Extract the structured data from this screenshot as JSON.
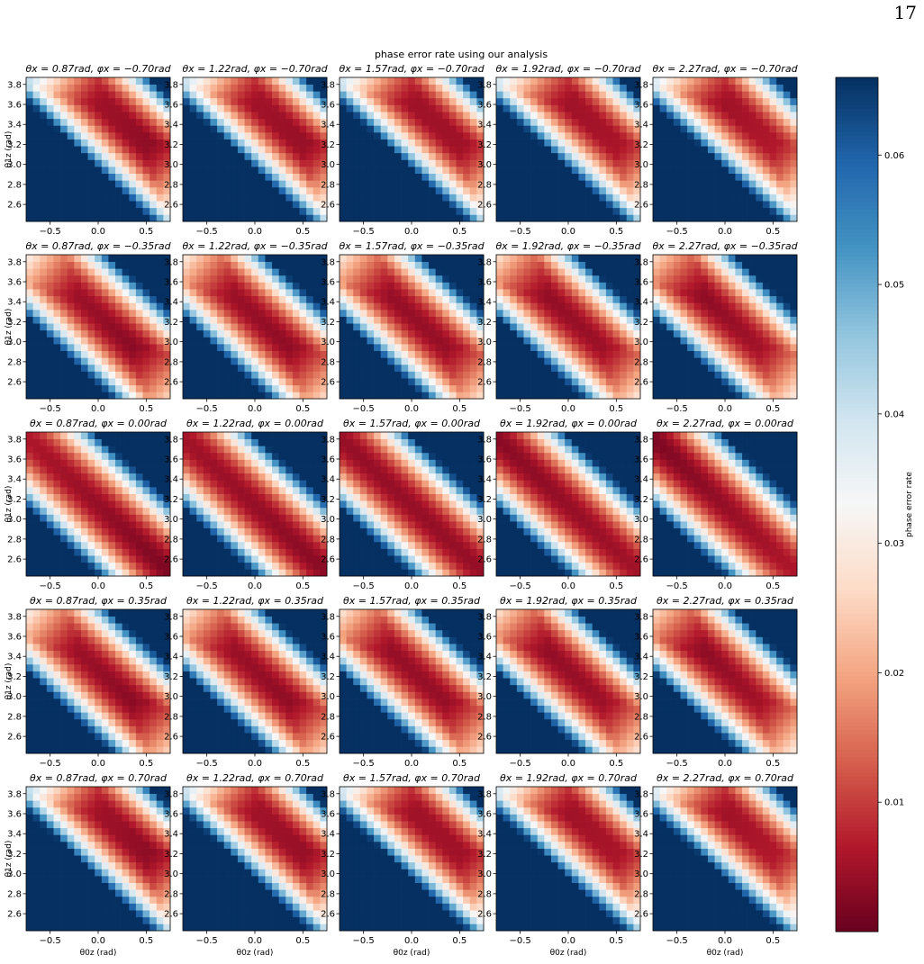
{
  "page": {
    "number": "17"
  },
  "chart_data": {
    "type": "heatmap",
    "title": "phase error rate using our analysis",
    "xlabel": "θ0z (rad)",
    "ylabel": "θ1z (rad)",
    "colorbar_label": "phase error rate",
    "colormap": "RdBu",
    "colormap_stops": [
      "#67001f",
      "#b2182b",
      "#d6604d",
      "#f4a582",
      "#fddbc7",
      "#f7f7f7",
      "#d1e5f0",
      "#92c5de",
      "#4393c3",
      "#2166ac",
      "#053061"
    ],
    "value_range": [
      0.0,
      0.066
    ],
    "colorbar_ticks": [
      "0.01",
      "0.02",
      "0.03",
      "0.04",
      "0.05",
      "0.06"
    ],
    "colorbar_tick_values": [
      0.01,
      0.02,
      0.03,
      0.04,
      0.05,
      0.06
    ],
    "x_range": [
      -0.75,
      0.75
    ],
    "y_range": [
      2.43,
      3.87
    ],
    "x_tick_values": [
      -0.5,
      0.0,
      0.5
    ],
    "x_ticks": [
      "−0.5",
      "0.0",
      "0.5"
    ],
    "y_tick_values": [
      2.6,
      2.8,
      3.0,
      3.2,
      3.4,
      3.6,
      3.8
    ],
    "y_ticks": [
      "2.6",
      "2.8",
      "3.0",
      "3.2",
      "3.4",
      "3.6",
      "3.8"
    ],
    "theta_x_values": [
      0.87,
      1.22,
      1.57,
      1.92,
      2.27
    ],
    "phi_x_values": [
      -0.7,
      -0.35,
      0.0,
      0.35,
      0.7
    ],
    "panels": [
      [
        {
          "theta_x": 0.87,
          "phi_x": -0.7,
          "title": "θx = 0.87rad, φx = −0.70rad"
        },
        {
          "theta_x": 1.22,
          "phi_x": -0.7,
          "title": "θx = 1.22rad, φx = −0.70rad"
        },
        {
          "theta_x": 1.57,
          "phi_x": -0.7,
          "title": "θx = 1.57rad, φx = −0.70rad"
        },
        {
          "theta_x": 1.92,
          "phi_x": -0.7,
          "title": "θx = 1.92rad, φx = −0.70rad"
        },
        {
          "theta_x": 2.27,
          "phi_x": -0.7,
          "title": "θx = 2.27rad, φx = −0.70rad"
        }
      ],
      [
        {
          "theta_x": 0.87,
          "phi_x": -0.35,
          "title": "θx = 0.87rad, φx = −0.35rad"
        },
        {
          "theta_x": 1.22,
          "phi_x": -0.35,
          "title": "θx = 1.22rad, φx = −0.35rad"
        },
        {
          "theta_x": 1.57,
          "phi_x": -0.35,
          "title": "θx = 1.57rad, φx = −0.35rad"
        },
        {
          "theta_x": 1.92,
          "phi_x": -0.35,
          "title": "θx = 1.92rad, φx = −0.35rad"
        },
        {
          "theta_x": 2.27,
          "phi_x": -0.35,
          "title": "θx = 2.27rad, φx = −0.35rad"
        }
      ],
      [
        {
          "theta_x": 0.87,
          "phi_x": 0.0,
          "title": "θx = 0.87rad, φx = 0.00rad"
        },
        {
          "theta_x": 1.22,
          "phi_x": 0.0,
          "title": "θx = 1.22rad, φx = 0.00rad"
        },
        {
          "theta_x": 1.57,
          "phi_x": 0.0,
          "title": "θx = 1.57rad, φx = 0.00rad"
        },
        {
          "theta_x": 1.92,
          "phi_x": 0.0,
          "title": "θx = 1.92rad, φx = 0.00rad"
        },
        {
          "theta_x": 2.27,
          "phi_x": 0.0,
          "title": "θx = 2.27rad, φx = 0.00rad"
        }
      ],
      [
        {
          "theta_x": 0.87,
          "phi_x": 0.35,
          "title": "θx = 0.87rad, φx = 0.35rad"
        },
        {
          "theta_x": 1.22,
          "phi_x": 0.35,
          "title": "θx = 1.22rad, φx = 0.35rad"
        },
        {
          "theta_x": 1.57,
          "phi_x": 0.35,
          "title": "θx = 1.57rad, φx = 0.35rad"
        },
        {
          "theta_x": 1.92,
          "phi_x": 0.35,
          "title": "θx = 1.92rad, φx = 0.35rad"
        },
        {
          "theta_x": 2.27,
          "phi_x": 0.35,
          "title": "θx = 2.27rad, φx = 0.35rad"
        }
      ],
      [
        {
          "theta_x": 0.87,
          "phi_x": 0.7,
          "title": "θx = 0.87rad, φx = 0.70rad"
        },
        {
          "theta_x": 1.22,
          "phi_x": 0.7,
          "title": "θx = 1.22rad, φx = 0.70rad"
        },
        {
          "theta_x": 1.57,
          "phi_x": 0.7,
          "title": "θx = 1.57rad, φx = 0.70rad"
        },
        {
          "theta_x": 1.92,
          "phi_x": 0.7,
          "title": "θx = 1.92rad, φx = 0.70rad"
        },
        {
          "theta_x": 2.27,
          "phi_x": 0.7,
          "title": "θx = 2.27rad, φx = 0.70rad"
        }
      ]
    ],
    "grid": false,
    "legend": "colorbar at right"
  }
}
